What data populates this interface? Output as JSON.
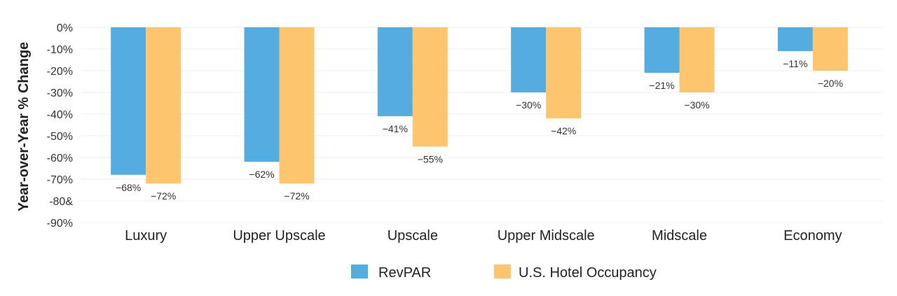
{
  "chart_data": {
    "type": "bar",
    "title": "",
    "xlabel": "",
    "ylabel": "Year-over-Year % Change",
    "ylim": [
      -90,
      0
    ],
    "yticks": [
      0,
      -10,
      -20,
      -30,
      -40,
      -50,
      -60,
      -70,
      -80,
      -90
    ],
    "ytick_labels": [
      "0%",
      "-10%",
      "-20%",
      "-30%",
      "-40%",
      "-50%",
      "-60%",
      "-70%",
      "-80&",
      "-90%"
    ],
    "grid": true,
    "legend_position": "bottom-center",
    "categories": [
      "Luxury",
      "Upper Upscale",
      "Upscale",
      "Upper Midscale",
      "Midscale",
      "Economy"
    ],
    "series": [
      {
        "name": "RevPAR",
        "color": "#55acdf",
        "values": [
          -68,
          -62,
          -41,
          -30,
          -21,
          -11
        ],
        "labels": [
          "−68%",
          "−62%",
          "−41%",
          "−30%",
          "−21%",
          "−11%"
        ]
      },
      {
        "name": "U.S. Hotel Occupancy",
        "color": "#fdc66e",
        "values": [
          -72,
          -72,
          -55,
          -42,
          -30,
          -20
        ],
        "labels": [
          "−72%",
          "−72%",
          "−55%",
          "−42%",
          "−30%",
          "−20%"
        ]
      }
    ]
  }
}
